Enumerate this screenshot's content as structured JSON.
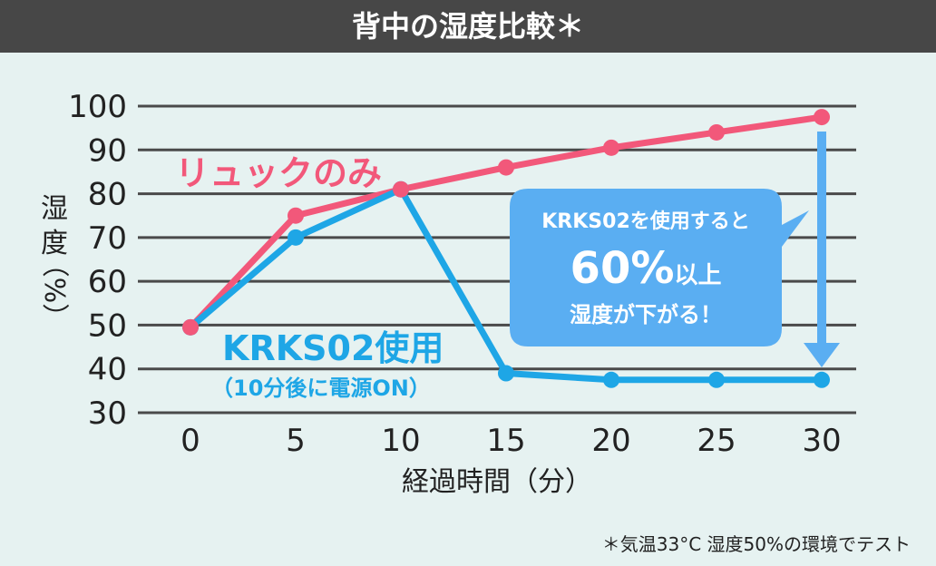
{
  "chart_data": {
    "type": "line",
    "title": "背中の湿度比較＊",
    "xlabel": "経過時間（分）",
    "ylabel": [
      "湿",
      "度",
      "（%）"
    ],
    "x": [
      0,
      5,
      10,
      15,
      20,
      25,
      30
    ],
    "x_ticks": [
      "0",
      "5",
      "10",
      "15",
      "20",
      "25",
      "30"
    ],
    "y_ticks": [
      "100",
      "90",
      "80",
      "70",
      "60",
      "50",
      "40",
      "30"
    ],
    "ylim": [
      30,
      100
    ],
    "grid": true,
    "series": [
      {
        "name": "リュックのみ",
        "color": "#f2587a",
        "values": [
          49.5,
          75,
          81,
          86,
          90.5,
          94,
          97.5
        ]
      },
      {
        "name": "KRKS02使用",
        "sublabel": "（10分後に電源ON）",
        "color": "#1ea6e6",
        "values": [
          49.5,
          70,
          81,
          39,
          37.5,
          37.5,
          37.5
        ]
      }
    ],
    "callout": {
      "line1": "KRKS02を使用すると",
      "line2_big": "60%",
      "line2_rest": "以上",
      "line3": "湿度が下がる！",
      "color": "#5aaef2"
    },
    "footnote": "＊気温33°C 湿度50%の環境でテスト"
  }
}
